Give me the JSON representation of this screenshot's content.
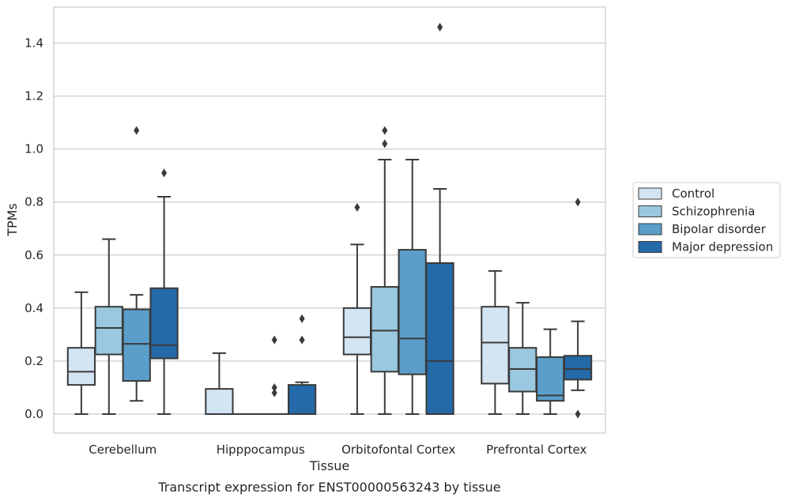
{
  "chart_data": {
    "type": "box",
    "title": "",
    "caption": "Transcript expression for ENST00000563243 by tissue",
    "xlabel": "Tissue",
    "ylabel": "TPMs",
    "ylim": [
      -0.07,
      1.54
    ],
    "yticks": [
      0.0,
      0.2,
      0.4,
      0.6,
      0.8,
      1.0,
      1.2,
      1.4
    ],
    "ytick_labels": [
      "0.0",
      "0.2",
      "0.4",
      "0.6",
      "0.8",
      "1.0",
      "1.2",
      "1.4"
    ],
    "grid": "horizontal",
    "legend_placement": "right",
    "categories": [
      "Cerebellum",
      "Hipppocampus",
      "Orbitofontal Cortex",
      "Prefrontal Cortex"
    ],
    "series": [
      {
        "name": "Control",
        "color": "#d3e4f3",
        "boxes": [
          {
            "whislo": 0.0,
            "q1": 0.11,
            "med": 0.16,
            "q3": 0.25,
            "whishi": 0.46,
            "fliers": []
          },
          {
            "whislo": 0.0,
            "q1": 0.0,
            "med": 0.0,
            "q3": 0.095,
            "whishi": 0.23,
            "fliers": []
          },
          {
            "whislo": 0.0,
            "q1": 0.225,
            "med": 0.29,
            "q3": 0.4,
            "whishi": 0.64,
            "fliers": [
              0.78
            ]
          },
          {
            "whislo": 0.0,
            "q1": 0.115,
            "med": 0.27,
            "q3": 0.405,
            "whishi": 0.54,
            "fliers": []
          }
        ]
      },
      {
        "name": "Schizophrenia",
        "color": "#9ac8e0",
        "boxes": [
          {
            "whislo": 0.0,
            "q1": 0.225,
            "med": 0.325,
            "q3": 0.405,
            "whishi": 0.66,
            "fliers": []
          },
          {
            "whislo": 0.0,
            "q1": 0.0,
            "med": 0.0,
            "q3": 0.0,
            "whishi": 0.0,
            "fliers": []
          },
          {
            "whislo": 0.0,
            "q1": 0.16,
            "med": 0.315,
            "q3": 0.48,
            "whishi": 0.96,
            "fliers": [
              1.02,
              1.07
            ]
          },
          {
            "whislo": 0.0,
            "q1": 0.085,
            "med": 0.17,
            "q3": 0.25,
            "whishi": 0.42,
            "fliers": []
          }
        ]
      },
      {
        "name": "Bipolar disorder",
        "color": "#5a9ec9",
        "boxes": [
          {
            "whislo": 0.05,
            "q1": 0.125,
            "med": 0.265,
            "q3": 0.395,
            "whishi": 0.45,
            "fliers": [
              1.07
            ]
          },
          {
            "whislo": 0.0,
            "q1": 0.0,
            "med": 0.0,
            "q3": 0.0,
            "whishi": 0.0,
            "fliers": [
              0.08,
              0.1,
              0.28
            ]
          },
          {
            "whislo": 0.0,
            "q1": 0.15,
            "med": 0.285,
            "q3": 0.62,
            "whishi": 0.96,
            "fliers": []
          },
          {
            "whislo": 0.0,
            "q1": 0.05,
            "med": 0.07,
            "q3": 0.215,
            "whishi": 0.32,
            "fliers": []
          }
        ]
      },
      {
        "name": "Major depression",
        "color": "#2469a8",
        "boxes": [
          {
            "whislo": 0.0,
            "q1": 0.21,
            "med": 0.26,
            "q3": 0.475,
            "whishi": 0.82,
            "fliers": [
              0.91
            ]
          },
          {
            "whislo": 0.0,
            "q1": 0.0,
            "med": 0.0,
            "q3": 0.11,
            "whishi": 0.12,
            "fliers": [
              0.28,
              0.36
            ]
          },
          {
            "whislo": 0.0,
            "q1": 0.0,
            "med": 0.2,
            "q3": 0.57,
            "whishi": 0.85,
            "fliers": [
              1.46
            ]
          },
          {
            "whislo": 0.09,
            "q1": 0.13,
            "med": 0.17,
            "q3": 0.22,
            "whishi": 0.35,
            "fliers": [
              0.0,
              0.8
            ]
          }
        ]
      }
    ]
  }
}
